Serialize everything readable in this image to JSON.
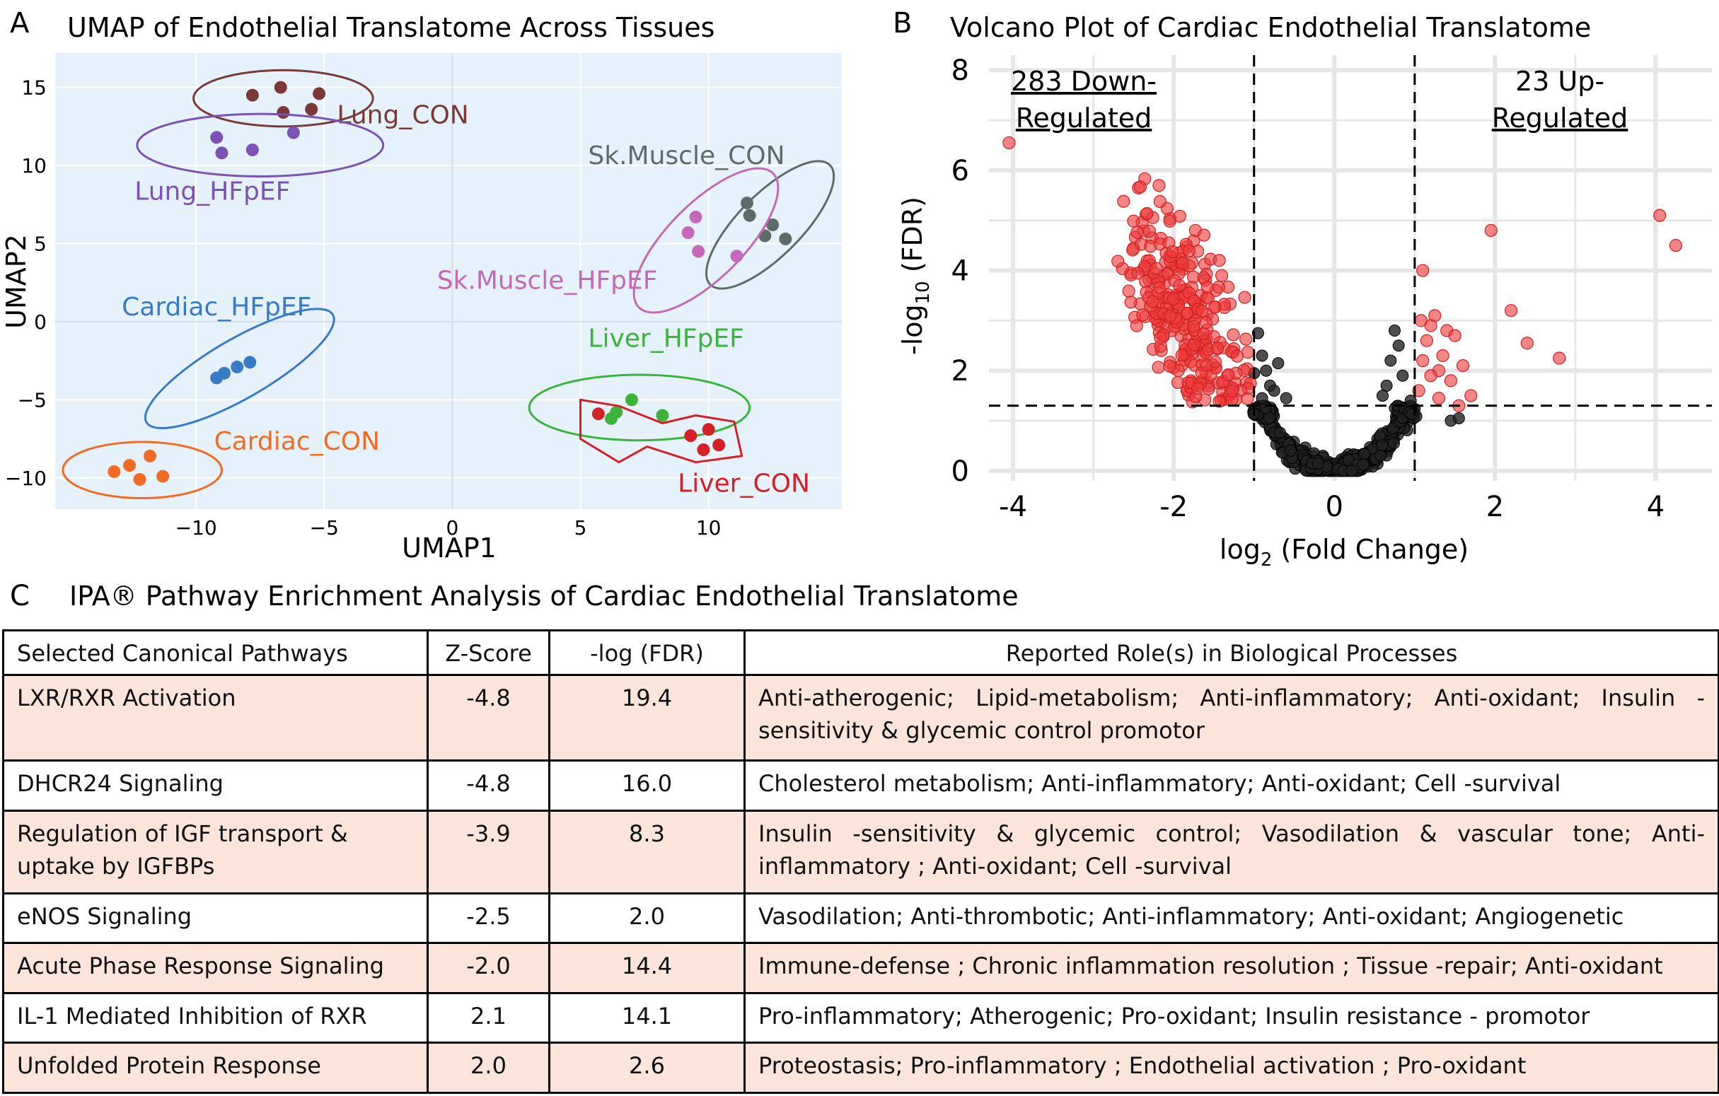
{
  "panel_labels": {
    "a": "A",
    "b": "B",
    "c": "C"
  },
  "chart_data": [
    {
      "type": "scatter",
      "title": "UMAP of Endothelial Translatome Across Tissues",
      "xlabel": "UMAP1",
      "ylabel": "UMAP2",
      "xlim": [
        -15.5,
        15.2
      ],
      "ylim": [
        -12,
        17.2
      ],
      "xticks": [
        -10,
        -5,
        0,
        5,
        10
      ],
      "yticks": [
        15,
        10,
        5,
        0,
        -5,
        -10
      ],
      "xtick_labels": [
        "−10",
        "−5",
        "0",
        "5",
        "10"
      ],
      "ytick_labels": [
        "15",
        "10",
        "5",
        "0",
        "−5",
        "−10"
      ],
      "background": "#e6f2fb",
      "groups": [
        {
          "name": "Lung_CON",
          "color": "#7b3a37",
          "points": [
            [
              -7.8,
              14.5
            ],
            [
              -6.7,
              15.0
            ],
            [
              -5.2,
              14.6
            ],
            [
              -6.6,
              13.4
            ],
            [
              -5.5,
              13.6
            ]
          ],
          "ellipse": {
            "cx": -6.6,
            "cy": 14.3,
            "rx": 3.5,
            "ry": 1.8,
            "angle": 0
          }
        },
        {
          "name": "Lung_HFpEF",
          "color": "#7c52b4",
          "points": [
            [
              -9.2,
              11.8
            ],
            [
              -9.0,
              10.8
            ],
            [
              -7.8,
              11.0
            ],
            [
              -6.2,
              12.1
            ]
          ],
          "ellipse": {
            "cx": -7.5,
            "cy": 11.3,
            "rx": 4.8,
            "ry": 2.0,
            "angle": 0
          }
        },
        {
          "name": "Sk.Muscle_CON",
          "color": "#5e6b6b",
          "points": [
            [
              11.5,
              7.6
            ],
            [
              11.6,
              6.8
            ],
            [
              12.5,
              6.2
            ],
            [
              12.2,
              5.5
            ],
            [
              13.0,
              5.3
            ]
          ],
          "ellipse": {
            "cx": 12.4,
            "cy": 6.2,
            "rx": 3.3,
            "ry": 2.0,
            "angle": -45
          }
        },
        {
          "name": "Sk.Muscle_HFpEF",
          "color": "#c468b7",
          "points": [
            [
              9.2,
              5.7
            ],
            [
              9.6,
              4.5
            ],
            [
              9.5,
              6.7
            ],
            [
              11.1,
              4.2
            ]
          ],
          "ellipse": {
            "cx": 9.9,
            "cy": 5.2,
            "rx": 3.7,
            "ry": 2.4,
            "angle": -45
          }
        },
        {
          "name": "Cardiac_HFpEF",
          "color": "#3a7bc8",
          "points": [
            [
              -9.2,
              -3.6
            ],
            [
              -8.9,
              -3.3
            ],
            [
              -8.4,
              -2.9
            ],
            [
              -7.9,
              -2.6
            ]
          ],
          "ellipse": {
            "cx": -8.3,
            "cy": -3.0,
            "rx": 4.2,
            "ry": 1.9,
            "angle": -30
          }
        },
        {
          "name": "Cardiac_CON",
          "color": "#f26b24",
          "points": [
            [
              -13.2,
              -9.6
            ],
            [
              -12.6,
              -9.2
            ],
            [
              -11.8,
              -8.6
            ],
            [
              -12.2,
              -10.1
            ],
            [
              -11.3,
              -9.9
            ]
          ],
          "ellipse": {
            "cx": -12.1,
            "cy": -9.5,
            "rx": 3.1,
            "ry": 1.8,
            "angle": 0
          }
        },
        {
          "name": "Liver_HFpEF",
          "color": "#3cb43c",
          "points": [
            [
              6.4,
              -5.8
            ],
            [
              6.2,
              -6.2
            ],
            [
              7.0,
              -5.0
            ],
            [
              8.2,
              -6.0
            ]
          ],
          "ellipse": {
            "cx": 7.3,
            "cy": -5.5,
            "rx": 4.3,
            "ry": 2.1,
            "angle": 0
          }
        },
        {
          "name": "Liver_CON",
          "color": "#d42027",
          "points": [
            [
              5.7,
              -5.9
            ],
            [
              9.3,
              -7.3
            ],
            [
              10.0,
              -6.9
            ],
            [
              9.8,
              -8.2
            ],
            [
              10.4,
              -7.9
            ]
          ],
          "ellipse": null
        }
      ]
    },
    {
      "type": "scatter",
      "title": "Volcano Plot of  Cardiac Endothelial Translatome",
      "xlabel": "log2 (Fold Change)",
      "ylabel": "-log10 (FDR)",
      "xlim": [
        -4.3,
        4.7
      ],
      "ylim": [
        -0.2,
        8.3
      ],
      "xticks": [
        -4,
        -2,
        0,
        2,
        4
      ],
      "yticks": [
        0,
        2,
        4,
        6,
        8
      ],
      "xtick_labels": [
        "-4",
        "-2",
        "0",
        "2",
        "4"
      ],
      "ytick_labels": [
        "0",
        "2",
        "4",
        "6",
        "8"
      ],
      "thresholds": {
        "fdr_line": 1.3,
        "fc_lines": [
          -1,
          1
        ]
      },
      "down_regulated": 283,
      "up_regulated": 23,
      "annotations": {
        "down": [
          "283 Down-",
          "Regulated"
        ],
        "up": [
          "23 Up-",
          "Regulated"
        ]
      },
      "colors": {
        "significant": "#ee3b3b",
        "not_significant": "#222222"
      },
      "series": [
        {
          "name": "Up-regulated",
          "points": [
            [
              4.05,
              5.1
            ],
            [
              4.25,
              4.5
            ],
            [
              1.95,
              4.8
            ],
            [
              2.2,
              3.2
            ],
            [
              2.4,
              2.55
            ],
            [
              2.8,
              2.25
            ],
            [
              1.1,
              4.0
            ],
            [
              1.15,
              2.6
            ],
            [
              1.25,
              3.1
            ],
            [
              1.3,
              2.0
            ],
            [
              1.4,
              2.8
            ],
            [
              1.5,
              2.7
            ],
            [
              1.7,
              1.5
            ],
            [
              1.2,
              1.9
            ],
            [
              1.05,
              1.6
            ],
            [
              1.35,
              2.3
            ],
            [
              1.1,
              2.2
            ],
            [
              1.3,
              1.45
            ],
            [
              1.2,
              2.9
            ],
            [
              1.45,
              1.8
            ],
            [
              1.6,
              2.1
            ],
            [
              1.08,
              3.0
            ],
            [
              1.55,
              1.3
            ]
          ]
        }
      ]
    }
  ],
  "table": {
    "title": "IPA® Pathway Enrichment Analysis of Cardiac Endothelial Translatome",
    "headers": [
      "Selected Canonical Pathways",
      "Z-Score",
      "-log (FDR)",
      "Reported Role(s) in Biological Processes"
    ],
    "rows": [
      {
        "pathway": "LXR/RXR Activation",
        "z": "-4.8",
        "fdr": "19.4",
        "roles": "Anti-atherogenic;  Lipid-metabolism;   Anti-inflammatory;  Anti-oxidant;  Insulin -sensitivity & glycemic control promotor"
      },
      {
        "pathway": "DHCR24 Signaling",
        "z": "-4.8",
        "fdr": "16.0",
        "roles": "Cholesterol  metabolism;  Anti-inflammatory;  Anti-oxidant; Cell -survival"
      },
      {
        "pathway": "Regulation of IGF transport & uptake by IGFBPs",
        "z": "-3.9",
        "fdr": "8.3",
        "roles": "Insulin -sensitivity  &  glycemic  control;  Vasodilation  &  vascular  tone;  Anti-inflammatory ; Anti-oxidant; Cell -survival"
      },
      {
        "pathway": "eNOS  Signaling",
        "z": "-2.5",
        "fdr": "2.0",
        "roles": "Vasodilation;  Anti-thrombotic; Anti-inflammatory;  Anti-oxidant; Angiogenetic"
      },
      {
        "pathway": "Acute Phase Response Signaling",
        "z": "-2.0",
        "fdr": "14.4",
        "roles": "Immune-defense ; Chronic  inflammation  resolution ; Tissue -repair; Anti-oxidant"
      },
      {
        "pathway": "IL-1 Mediated Inhibition of RXR",
        "z": "2.1",
        "fdr": "14.1",
        "roles": "Pro-inflammatory;  Atherogenic; Pro-oxidant; Insulin  resistance - promotor"
      },
      {
        "pathway": "Unfolded Protein Response",
        "z": "2.0",
        "fdr": "2.6",
        "roles": "Proteostasis;   Pro-inflammatory ; Endothelial  activation ; Pro-oxidant"
      }
    ]
  }
}
